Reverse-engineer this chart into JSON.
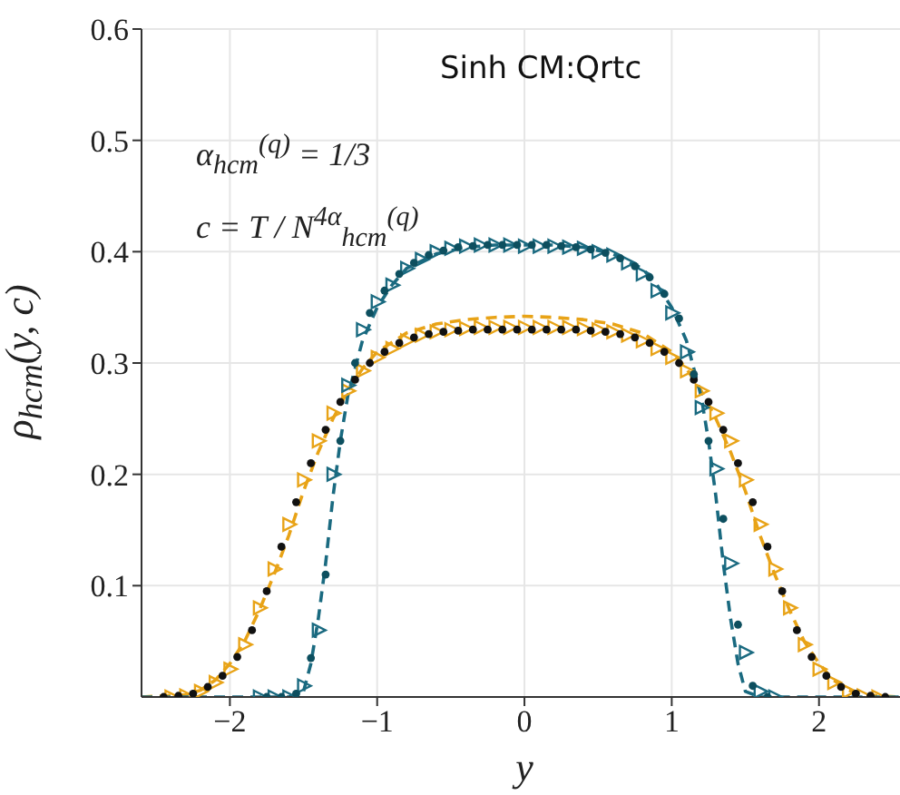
{
  "chart_data": {
    "type": "line",
    "title": "Sinh CM:Qrtc",
    "xlabel": "y",
    "ylabel": "ρ$_{hcm}$(y, c)",
    "annotations": [
      "α$_{hcm}$$^{(q)}$ = 1/3",
      "c = T / N$^{4α}$$_{hcm}$$^{(q)}$"
    ],
    "xlim": [
      -2.6,
      2.55
    ],
    "ylim": [
      0,
      0.6
    ],
    "xticks": [
      {
        "value": -2,
        "label": "−2"
      },
      {
        "value": -1,
        "label": "−1"
      },
      0,
      1,
      2
    ],
    "yticks": [
      0.1,
      0.2,
      0.3,
      0.4,
      0.5,
      0.6
    ],
    "grid": true,
    "line_style": "dashed",
    "series": [
      {
        "color": "#e8a317",
        "marker": "none",
        "x": [
          -2.6,
          -2.3,
          -2.2,
          -2.1,
          -2.0,
          -1.9,
          -1.8,
          -1.7,
          -1.6,
          -1.5,
          -1.4,
          -1.3,
          -1.2,
          -1.1,
          -1.0,
          -0.8,
          -0.6,
          -0.4,
          -0.2,
          0,
          0.2,
          0.4,
          0.6,
          0.8,
          1.0,
          1.1,
          1.2,
          1.3,
          1.4,
          1.5,
          1.6,
          1.7,
          1.8,
          1.9,
          2.0,
          2.1,
          2.2,
          2.3,
          2.55
        ],
        "values": [
          0,
          0.002,
          0.006,
          0.015,
          0.03,
          0.05,
          0.078,
          0.11,
          0.145,
          0.185,
          0.22,
          0.25,
          0.275,
          0.295,
          0.31,
          0.327,
          0.335,
          0.339,
          0.341,
          0.342,
          0.341,
          0.339,
          0.335,
          0.327,
          0.31,
          0.295,
          0.275,
          0.25,
          0.22,
          0.185,
          0.145,
          0.11,
          0.078,
          0.05,
          0.03,
          0.015,
          0.006,
          0.002,
          0
        ]
      },
      {
        "type": "scatter",
        "color": "#e8a317",
        "marker": "triangle",
        "x": [
          -2.4,
          -2.3,
          -2.2,
          -2.1,
          -2.0,
          -1.9,
          -1.8,
          -1.7,
          -1.6,
          -1.5,
          -1.4,
          -1.3,
          -1.2,
          -1.1,
          -1.0,
          -0.9,
          -0.8,
          -0.7,
          -0.6,
          -0.5,
          -0.4,
          -0.3,
          -0.2,
          -0.1,
          0,
          0.1,
          0.2,
          0.3,
          0.4,
          0.5,
          0.6,
          0.7,
          0.8,
          0.9,
          1.0,
          1.1,
          1.2,
          1.3,
          1.4,
          1.5,
          1.6,
          1.7,
          1.8,
          1.9,
          2.0,
          2.1,
          2.2,
          2.3,
          2.4
        ],
        "values": [
          0,
          0.001,
          0.005,
          0.013,
          0.025,
          0.047,
          0.08,
          0.115,
          0.155,
          0.195,
          0.23,
          0.255,
          0.275,
          0.293,
          0.305,
          0.313,
          0.32,
          0.325,
          0.328,
          0.33,
          0.331,
          0.332,
          0.332,
          0.332,
          0.332,
          0.332,
          0.332,
          0.332,
          0.331,
          0.33,
          0.328,
          0.325,
          0.32,
          0.313,
          0.305,
          0.293,
          0.275,
          0.255,
          0.23,
          0.195,
          0.155,
          0.115,
          0.08,
          0.047,
          0.025,
          0.013,
          0.005,
          0.001,
          0
        ]
      },
      {
        "type": "scatter",
        "color": "#111111",
        "marker": "circle",
        "x": [
          -2.45,
          -2.35,
          -2.25,
          -2.15,
          -2.05,
          -1.95,
          -1.85,
          -1.75,
          -1.65,
          -1.55,
          -1.45,
          -1.35,
          -1.25,
          -1.15,
          -1.05,
          -0.95,
          -0.85,
          -0.75,
          -0.65,
          -0.55,
          -0.45,
          -0.35,
          -0.25,
          -0.15,
          -0.05,
          0.05,
          0.15,
          0.25,
          0.35,
          0.45,
          0.55,
          0.65,
          0.75,
          0.85,
          0.95,
          1.05,
          1.15,
          1.25,
          1.35,
          1.45,
          1.55,
          1.65,
          1.75,
          1.85,
          1.95,
          2.05,
          2.15,
          2.25,
          2.35,
          2.45
        ],
        "values": [
          0,
          0.001,
          0.003,
          0.009,
          0.019,
          0.036,
          0.06,
          0.095,
          0.135,
          0.175,
          0.21,
          0.24,
          0.265,
          0.285,
          0.3,
          0.31,
          0.318,
          0.323,
          0.326,
          0.328,
          0.329,
          0.33,
          0.33,
          0.33,
          0.33,
          0.33,
          0.33,
          0.33,
          0.33,
          0.329,
          0.328,
          0.326,
          0.323,
          0.318,
          0.31,
          0.3,
          0.285,
          0.265,
          0.24,
          0.21,
          0.175,
          0.135,
          0.095,
          0.06,
          0.036,
          0.019,
          0.009,
          0.003,
          0.001,
          0
        ]
      },
      {
        "color": "#1a6a80",
        "marker": "none",
        "x": [
          -2.6,
          -1.6,
          -1.5,
          -1.45,
          -1.4,
          -1.35,
          -1.3,
          -1.25,
          -1.2,
          -1.1,
          -1.0,
          -0.9,
          -0.8,
          -0.6,
          -0.4,
          -0.2,
          0,
          0.2,
          0.4,
          0.6,
          0.8,
          0.9,
          1.0,
          1.1,
          1.2,
          1.25,
          1.3,
          1.35,
          1.4,
          1.45,
          1.5,
          1.6,
          2.55
        ],
        "values": [
          0,
          0,
          0.005,
          0.03,
          0.07,
          0.12,
          0.18,
          0.23,
          0.27,
          0.32,
          0.35,
          0.37,
          0.385,
          0.398,
          0.404,
          0.406,
          0.406,
          0.406,
          0.404,
          0.398,
          0.385,
          0.37,
          0.35,
          0.32,
          0.27,
          0.23,
          0.18,
          0.12,
          0.07,
          0.03,
          0.005,
          0,
          0
        ]
      },
      {
        "type": "scatter",
        "color": "#1a6a80",
        "marker": "triangle",
        "x": [
          -1.8,
          -1.7,
          -1.6,
          -1.5,
          -1.4,
          -1.3,
          -1.2,
          -1.1,
          -1.0,
          -0.9,
          -0.8,
          -0.7,
          -0.6,
          -0.5,
          -0.4,
          -0.3,
          -0.2,
          -0.1,
          0,
          0.1,
          0.2,
          0.3,
          0.4,
          0.5,
          0.6,
          0.7,
          0.8,
          0.9,
          1.0,
          1.1,
          1.2,
          1.3,
          1.4,
          1.5,
          1.6,
          1.7
        ],
        "values": [
          0,
          0,
          0,
          0.01,
          0.06,
          0.2,
          0.28,
          0.33,
          0.355,
          0.37,
          0.385,
          0.393,
          0.4,
          0.403,
          0.405,
          0.406,
          0.406,
          0.406,
          0.405,
          0.405,
          0.405,
          0.404,
          0.403,
          0.4,
          0.397,
          0.39,
          0.38,
          0.365,
          0.345,
          0.31,
          0.26,
          0.205,
          0.12,
          0.04,
          0.005,
          0
        ]
      },
      {
        "type": "scatter",
        "color": "#0d4f5f",
        "marker": "circle",
        "x": [
          -1.75,
          -1.65,
          -1.55,
          -1.45,
          -1.35,
          -1.25,
          -1.15,
          -1.05,
          -0.95,
          -0.85,
          -0.75,
          -0.65,
          -0.55,
          -0.45,
          -0.35,
          -0.25,
          -0.15,
          -0.05,
          0.05,
          0.15,
          0.25,
          0.35,
          0.45,
          0.55,
          0.65,
          0.75,
          0.85,
          0.95,
          1.05,
          1.15,
          1.25,
          1.35,
          1.45,
          1.55,
          1.65
        ],
        "values": [
          0,
          0,
          0.003,
          0.035,
          0.11,
          0.23,
          0.3,
          0.345,
          0.365,
          0.38,
          0.39,
          0.397,
          0.401,
          0.404,
          0.405,
          0.406,
          0.406,
          0.406,
          0.406,
          0.406,
          0.405,
          0.404,
          0.402,
          0.399,
          0.394,
          0.387,
          0.377,
          0.362,
          0.34,
          0.29,
          0.23,
          0.16,
          0.065,
          0.01,
          0
        ]
      }
    ]
  }
}
